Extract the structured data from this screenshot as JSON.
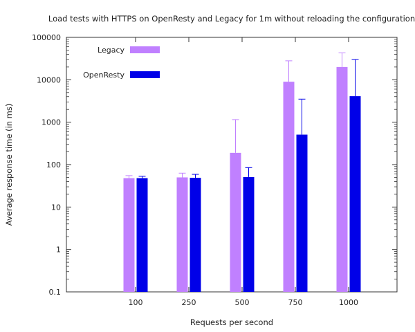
{
  "chart_data": {
    "type": "bar",
    "title": "Load tests with HTTPS on OpenResty and Legacy for 1m without reloading the configuration",
    "xlabel": "Requests per second",
    "ylabel": "Average response time (in ms)",
    "y_scale": "log",
    "ylim": [
      0.1,
      100000
    ],
    "y_ticks": [
      "0.1",
      "1",
      "10",
      "100",
      "1000",
      "10000",
      "100000"
    ],
    "categories": [
      "100",
      "250",
      "500",
      "750",
      "1000"
    ],
    "legend_position": "top-left",
    "grid": false,
    "series": [
      {
        "name": "Legacy",
        "color": "#c080ff",
        "values": [
          48,
          50,
          190,
          9000,
          20000
        ],
        "error_upper": [
          55,
          63,
          1150,
          28000,
          43000
        ]
      },
      {
        "name": "OpenResty",
        "color": "#0000e8",
        "values": [
          48,
          49,
          51,
          510,
          4100
        ],
        "error_upper": [
          53,
          59,
          85,
          3500,
          30000
        ]
      }
    ]
  }
}
